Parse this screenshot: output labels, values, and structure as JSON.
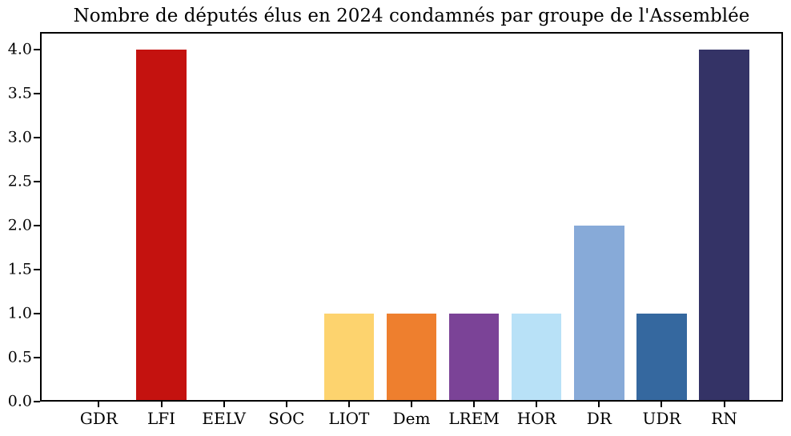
{
  "chart_data": {
    "type": "bar",
    "title": "Nombre de députés élus en 2024 condamnés par groupe de l'Assemblée",
    "categories": [
      "GDR",
      "LFI",
      "EELV",
      "SOC",
      "LIOT",
      "Dem",
      "LREM",
      "HOR",
      "DR",
      "UDR",
      "RN"
    ],
    "values": [
      0,
      4,
      0,
      0,
      1,
      1,
      1,
      1,
      2,
      1,
      4
    ],
    "bar_colors": [
      null,
      "#c4120f",
      null,
      null,
      "#fdd36e",
      "#ee7f2e",
      "#7b4397",
      "#b8e1f7",
      "#87aad8",
      "#35689f",
      "#343366"
    ],
    "xlabel": "",
    "ylabel": "",
    "xlim": [
      -0.94,
      10.94
    ],
    "ylim": [
      0,
      4.2
    ],
    "bar_width": 0.8,
    "yticks": [
      0,
      0.5,
      1,
      1.5,
      2,
      2.5,
      3,
      3.5,
      4
    ],
    "ytick_labels": [
      "0.0",
      "0.5",
      "1.0",
      "1.5",
      "2.0",
      "2.5",
      "3.0",
      "3.5",
      "4.0"
    ],
    "grid": false,
    "legend": null,
    "spine_color": "#000000",
    "text_color": "#000000",
    "background": "#ffffff"
  }
}
